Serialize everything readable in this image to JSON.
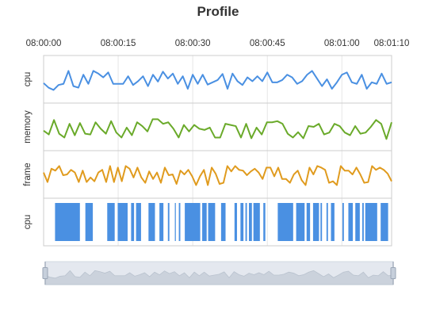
{
  "chart_data": {
    "type": "line",
    "title": "Profile",
    "x_axis": {
      "tick_labels": [
        "08:00:00",
        "08:00:15",
        "08:00:30",
        "08:00:45",
        "08:01:00",
        "08:01:10"
      ],
      "tick_seconds": [
        0,
        15,
        30,
        45,
        60,
        70
      ],
      "range_seconds": [
        0,
        70
      ],
      "position": "top"
    },
    "grid": true,
    "lanes": [
      {
        "name": "cpu",
        "kind": "line",
        "color": "#4a90e2",
        "ylim": [
          0,
          1
        ],
        "values": [
          0.4,
          0.28,
          0.22,
          0.35,
          0.38,
          0.72,
          0.32,
          0.28,
          0.62,
          0.38,
          0.72,
          0.65,
          0.55,
          0.68,
          0.38,
          0.38,
          0.38,
          0.58,
          0.35,
          0.45,
          0.58,
          0.32,
          0.62,
          0.44,
          0.7,
          0.52,
          0.65,
          0.38,
          0.58,
          0.25,
          0.62,
          0.38,
          0.62,
          0.36,
          0.42,
          0.48,
          0.64,
          0.25,
          0.65,
          0.45,
          0.35,
          0.55,
          0.45,
          0.58,
          0.45,
          0.68,
          0.42,
          0.42,
          0.48,
          0.62,
          0.55,
          0.38,
          0.45,
          0.62,
          0.72,
          0.52,
          0.32,
          0.5,
          0.25,
          0.42,
          0.62,
          0.68,
          0.42,
          0.38,
          0.62,
          0.25,
          0.42,
          0.38,
          0.65,
          0.38,
          0.42
        ]
      },
      {
        "name": "memory",
        "kind": "line",
        "color": "#6aaa2a",
        "ylim": [
          0,
          1
        ],
        "values": [
          0.4,
          0.3,
          0.68,
          0.32,
          0.22,
          0.58,
          0.28,
          0.6,
          0.32,
          0.3,
          0.62,
          0.45,
          0.32,
          0.65,
          0.35,
          0.22,
          0.48,
          0.28,
          0.62,
          0.52,
          0.38,
          0.7,
          0.7,
          0.58,
          0.62,
          0.45,
          0.22,
          0.55,
          0.38,
          0.55,
          0.45,
          0.42,
          0.48,
          0.22,
          0.22,
          0.58,
          0.55,
          0.52,
          0.22,
          0.58,
          0.2,
          0.48,
          0.3,
          0.62,
          0.62,
          0.65,
          0.58,
          0.32,
          0.22,
          0.36,
          0.2,
          0.52,
          0.5,
          0.58,
          0.3,
          0.35,
          0.58,
          0.52,
          0.35,
          0.28,
          0.52,
          0.32,
          0.35,
          0.5,
          0.68,
          0.58,
          0.18,
          0.62
        ]
      },
      {
        "name": "frame",
        "kind": "line",
        "color": "#e09b1e",
        "ylim": [
          0,
          1
        ],
        "values": [
          0.55,
          0.3,
          0.65,
          0.6,
          0.72,
          0.48,
          0.5,
          0.62,
          0.55,
          0.3,
          0.6,
          0.3,
          0.42,
          0.32,
          0.55,
          0.62,
          0.3,
          0.72,
          0.3,
          0.68,
          0.32,
          0.72,
          0.65,
          0.42,
          0.68,
          0.42,
          0.28,
          0.58,
          0.38,
          0.55,
          0.28,
          0.68,
          0.48,
          0.5,
          0.25,
          0.6,
          0.5,
          0.62,
          0.45,
          0.22,
          0.45,
          0.62,
          0.22,
          0.68,
          0.52,
          0.25,
          0.28,
          0.72,
          0.58,
          0.72,
          0.62,
          0.6,
          0.48,
          0.58,
          0.65,
          0.55,
          0.38,
          0.68,
          0.68,
          0.45,
          0.68,
          0.38,
          0.38,
          0.28,
          0.5,
          0.6,
          0.35,
          0.22,
          0.68,
          0.5,
          0.72,
          0.68,
          0.62,
          0.28,
          0.32,
          0.22,
          0.72,
          0.6,
          0.6,
          0.5,
          0.68,
          0.5,
          0.28,
          0.3,
          0.72,
          0.62,
          0.68,
          0.62,
          0.52,
          0.32
        ]
      },
      {
        "name": "cpu",
        "kind": "bars",
        "color": "#4a90e2",
        "ylim": [
          0,
          1
        ],
        "spans": [
          [
            2.3,
            7.3
          ],
          [
            8.4,
            9.9
          ],
          [
            12.8,
            14.3
          ],
          [
            14.9,
            16.9
          ],
          [
            17.6,
            18.2
          ],
          [
            18.6,
            19.6
          ],
          [
            21.1,
            22.4
          ],
          [
            23.3,
            24.1
          ],
          [
            25.0,
            25.3
          ],
          [
            26.4,
            26.6
          ],
          [
            27.2,
            27.5
          ],
          [
            28.4,
            31.5
          ],
          [
            31.9,
            32.8
          ],
          [
            33.1,
            34.5
          ],
          [
            35.7,
            36.6
          ],
          [
            38.4,
            38.9
          ],
          [
            39.6,
            40.2
          ],
          [
            40.6,
            40.9
          ],
          [
            41.3,
            41.9
          ],
          [
            42.2,
            43.5
          ],
          [
            44.2,
            44.6
          ],
          [
            47.1,
            50.2
          ],
          [
            50.8,
            52.5
          ],
          [
            52.9,
            53.6
          ],
          [
            54.2,
            55.4
          ],
          [
            55.7,
            56.0
          ],
          [
            56.9,
            57.2
          ],
          [
            57.8,
            58.5
          ],
          [
            60.1,
            60.4
          ],
          [
            61.3,
            62.2
          ],
          [
            62.7,
            63.6
          ],
          [
            64.1,
            64.4
          ],
          [
            64.7,
            67.1
          ],
          [
            67.8,
            69.3
          ]
        ]
      }
    ],
    "data_zoom": {
      "range": [
        0,
        70
      ]
    }
  }
}
